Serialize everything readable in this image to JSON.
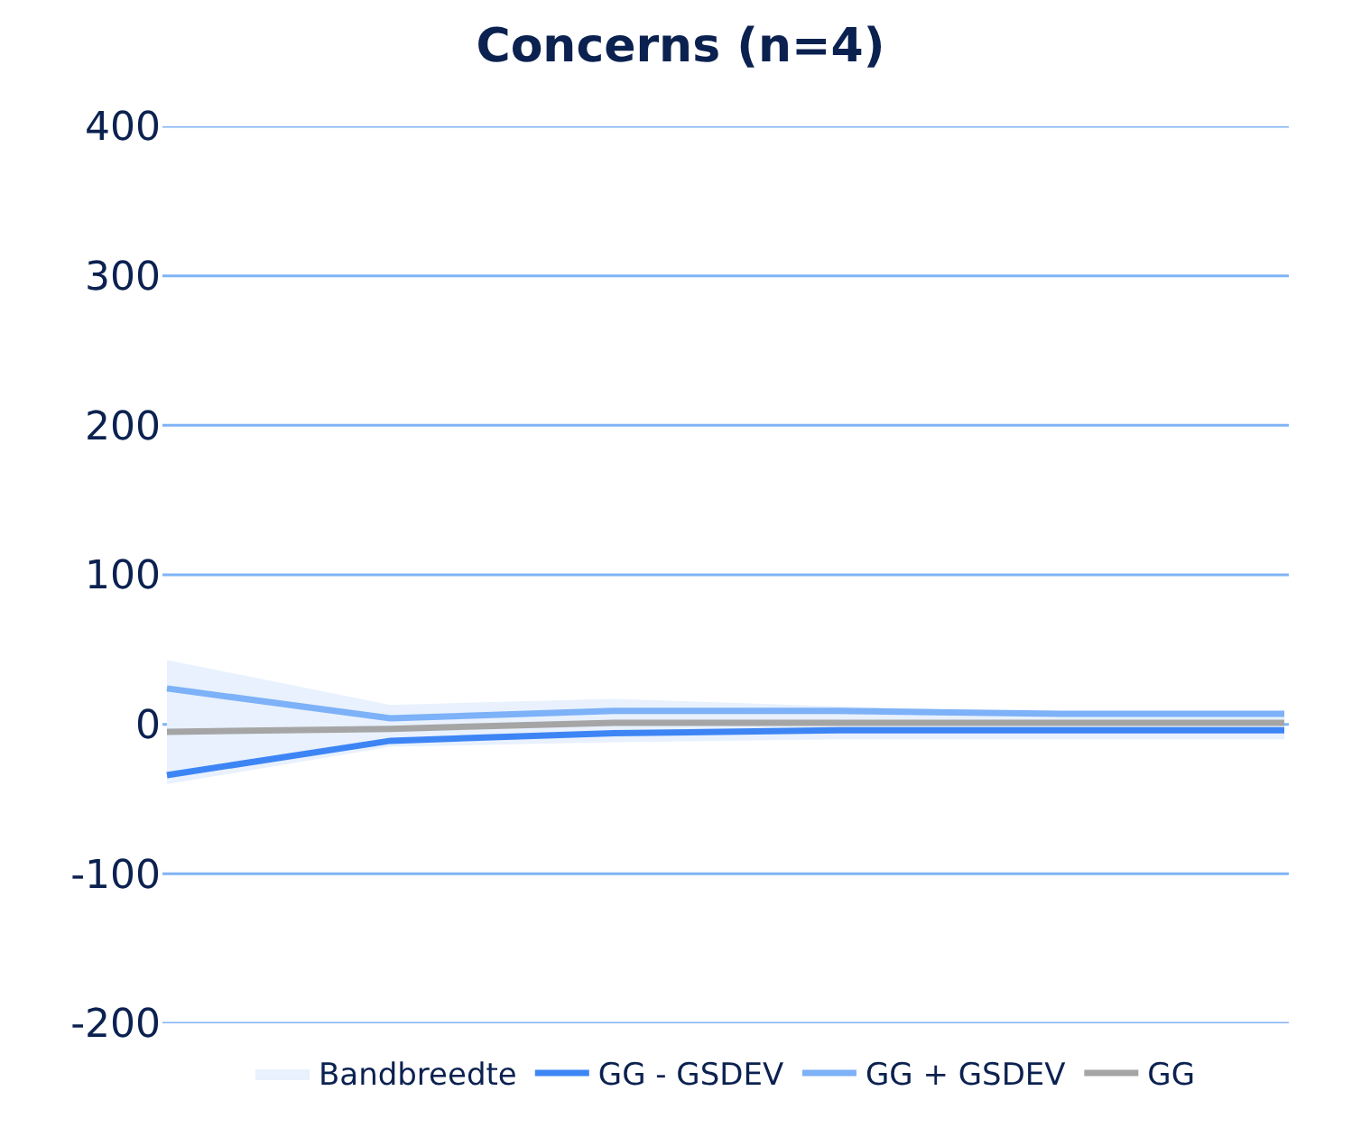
{
  "chart_data": {
    "type": "line",
    "title": "Concerns (n=4)",
    "categories": [
      null,
      null,
      null,
      null,
      null,
      null
    ],
    "series": [
      {
        "name": "Bandbreedte",
        "type": "area",
        "color": "#e8f1fd",
        "values": [
          null,
          null,
          null,
          null,
          null,
          null
        ],
        "lower": [
          -40,
          -15,
          -12,
          -10,
          -10,
          -10
        ],
        "upper": [
          43,
          13,
          17,
          12,
          8,
          8
        ]
      },
      {
        "name": "GG - GSDEV",
        "color": "#3d85f5",
        "values": [
          -34,
          -11,
          -6,
          -4,
          -4,
          -4
        ]
      },
      {
        "name": "GG + GSDEV",
        "color": "#7db1f8",
        "values": [
          24,
          4,
          9,
          9,
          7,
          7
        ]
      },
      {
        "name": "GG",
        "color": "#a5a5a5",
        "values": [
          -5,
          -3,
          1,
          1,
          1,
          1
        ]
      }
    ],
    "ylim": [
      -200,
      400
    ],
    "yticks": [
      -200,
      -100,
      0,
      100,
      200,
      300,
      400
    ],
    "grid": "y",
    "legend": "bottom",
    "line_style": "solid",
    "marker": "none"
  }
}
